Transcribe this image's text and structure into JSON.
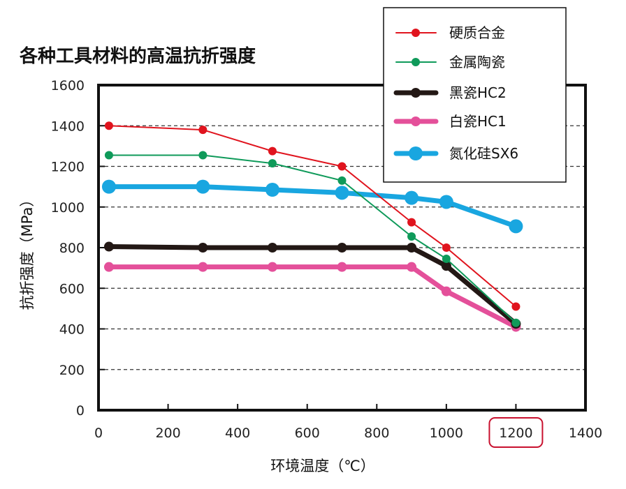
{
  "chart_data": {
    "type": "line",
    "title": "各种工具材料的高温抗折强度",
    "xlabel": "环境温度（℃）",
    "ylabel": "抗折强度（MPa）",
    "xlim": [
      0,
      1400
    ],
    "ylim": [
      0,
      1600
    ],
    "xticks": [
      0,
      200,
      400,
      600,
      800,
      1000,
      1200,
      1400
    ],
    "yticks": [
      0,
      200,
      400,
      600,
      800,
      1000,
      1200,
      1400,
      1600
    ],
    "grid": "horizontal-dashed",
    "legend_position": "top-right",
    "highlighted_xtick": 1200,
    "series": [
      {
        "name": "硬质合金",
        "color": "#e0141e",
        "x": [
          30,
          300,
          500,
          700,
          900,
          1000,
          1200
        ],
        "y": [
          1400,
          1380,
          1275,
          1200,
          925,
          800,
          510
        ]
      },
      {
        "name": "金属陶瓷",
        "color": "#0f9a5a",
        "x": [
          30,
          300,
          500,
          700,
          900,
          1000,
          1200
        ],
        "y": [
          1255,
          1255,
          1215,
          1130,
          855,
          745,
          430
        ]
      },
      {
        "name": "黑瓷HC2",
        "color": "#231815",
        "x": [
          30,
          300,
          500,
          700,
          900,
          1000,
          1200
        ],
        "y": [
          805,
          800,
          800,
          800,
          800,
          710,
          425
        ]
      },
      {
        "name": "白瓷HC1",
        "color": "#e4509a",
        "x": [
          30,
          300,
          500,
          700,
          900,
          1000,
          1200
        ],
        "y": [
          705,
          705,
          705,
          705,
          705,
          585,
          410
        ]
      },
      {
        "name": "氮化硅SX6",
        "color": "#19a6e0",
        "x": [
          30,
          300,
          500,
          700,
          900,
          1000,
          1200
        ],
        "y": [
          1100,
          1100,
          1085,
          1070,
          1045,
          1025,
          905
        ]
      }
    ]
  }
}
